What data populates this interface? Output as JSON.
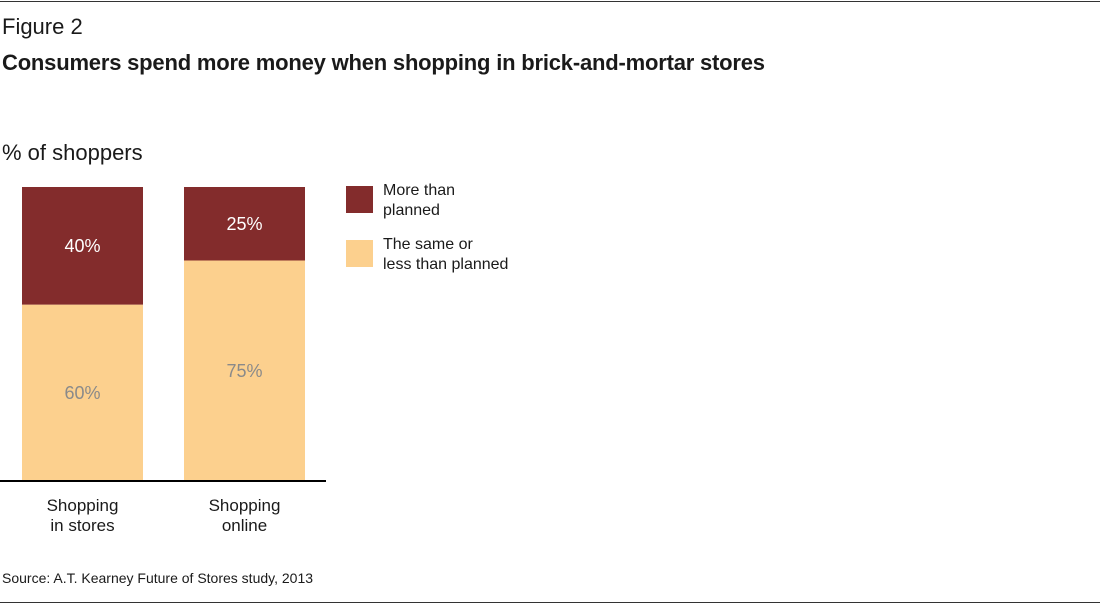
{
  "figure_label": "Figure 2",
  "title": "Consumers spend more money when shopping in brick-and-mortar stores",
  "unit_label": "% of shoppers",
  "source": "Source: A.T. Kearney Future of Stores study, 2013",
  "colors": {
    "more": "#832c2c",
    "same": "#fcd08e",
    "label_on_dark": "#ffffff",
    "label_on_light": "#8a8a8a"
  },
  "chart_data": {
    "type": "bar",
    "stacked": true,
    "categories": [
      [
        "Shopping",
        "in stores"
      ],
      [
        "Shopping",
        "online"
      ]
    ],
    "series": [
      {
        "name": "The same or less than planned",
        "legend_lines": [
          "The same or",
          "less than planned"
        ],
        "values": [
          60,
          75
        ],
        "labels": [
          "60%",
          "75%"
        ]
      },
      {
        "name": "More than planned",
        "legend_lines": [
          "More than",
          "planned"
        ],
        "values": [
          40,
          25
        ],
        "labels": [
          "40%",
          "25%"
        ]
      }
    ],
    "ylim": [
      0,
      100
    ],
    "xlabel": "",
    "ylabel": "% of shoppers",
    "grid": false,
    "legend": "right"
  }
}
